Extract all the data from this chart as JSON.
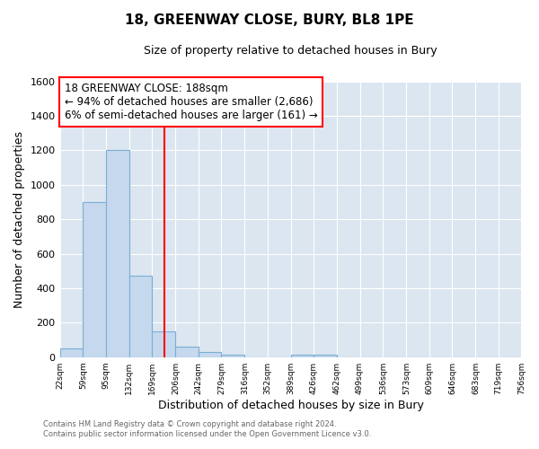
{
  "title": "18, GREENWAY CLOSE, BURY, BL8 1PE",
  "subtitle": "Size of property relative to detached houses in Bury",
  "xlabel": "Distribution of detached houses by size in Bury",
  "ylabel": "Number of detached properties",
  "bar_color": "#c5d8ee",
  "bar_edge_color": "#7aafd4",
  "plot_bg_color": "#dce6f0",
  "fig_bg_color": "#ffffff",
  "grid_color": "#ffffff",
  "bin_edges": [
    22,
    59,
    95,
    132,
    169,
    206,
    242,
    279,
    316,
    352,
    389,
    426,
    462,
    499,
    536,
    573,
    609,
    646,
    683,
    719,
    756
  ],
  "bin_heights": [
    50,
    900,
    1200,
    470,
    150,
    60,
    30,
    15,
    0,
    0,
    15,
    15,
    0,
    0,
    0,
    0,
    0,
    0,
    0,
    0
  ],
  "ylim": [
    0,
    1600
  ],
  "yticks": [
    0,
    200,
    400,
    600,
    800,
    1000,
    1200,
    1400,
    1600
  ],
  "red_line_x": 188,
  "annotation_title": "18 GREENWAY CLOSE: 188sqm",
  "annotation_line1": "← 94% of detached houses are smaller (2,686)",
  "annotation_line2": "6% of semi-detached houses are larger (161) →",
  "footer_line1": "Contains HM Land Registry data © Crown copyright and database right 2024.",
  "footer_line2": "Contains public sector information licensed under the Open Government Licence v3.0.",
  "xtick_labels": [
    "22sqm",
    "59sqm",
    "95sqm",
    "132sqm",
    "169sqm",
    "206sqm",
    "242sqm",
    "279sqm",
    "316sqm",
    "352sqm",
    "389sqm",
    "426sqm",
    "462sqm",
    "499sqm",
    "536sqm",
    "573sqm",
    "609sqm",
    "646sqm",
    "683sqm",
    "719sqm",
    "756sqm"
  ]
}
